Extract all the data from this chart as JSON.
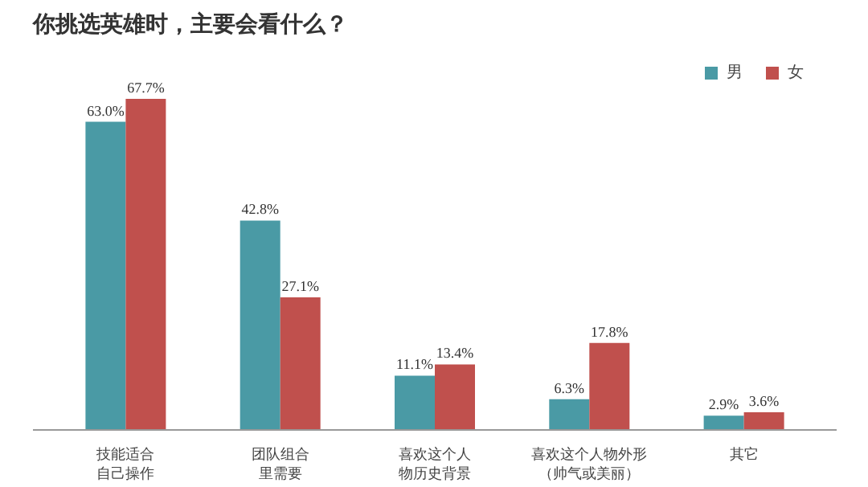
{
  "chart_data": {
    "type": "bar",
    "title": "你挑选英雄时，主要会看什么？",
    "categories": [
      "技能适合自己操作",
      "团队组合里需要",
      "喜欢这个人物历史背景",
      "喜欢这个人物外形（帅气或美丽）",
      "其它"
    ],
    "series": [
      {
        "name": "男",
        "color": "#4a9aa5",
        "values": [
          63.0,
          42.8,
          11.1,
          6.3,
          2.9
        ],
        "value_labels": [
          "63.0%",
          "42.8%",
          "11.1%",
          "6.3%",
          "2.9%"
        ]
      },
      {
        "name": "女",
        "color": "#c0504d",
        "values": [
          67.7,
          27.1,
          13.4,
          17.8,
          3.6
        ],
        "value_labels": [
          "67.7%",
          "27.1%",
          "13.4%",
          "17.8%",
          "3.6%"
        ]
      }
    ],
    "legend": "top right",
    "grid": false
  }
}
